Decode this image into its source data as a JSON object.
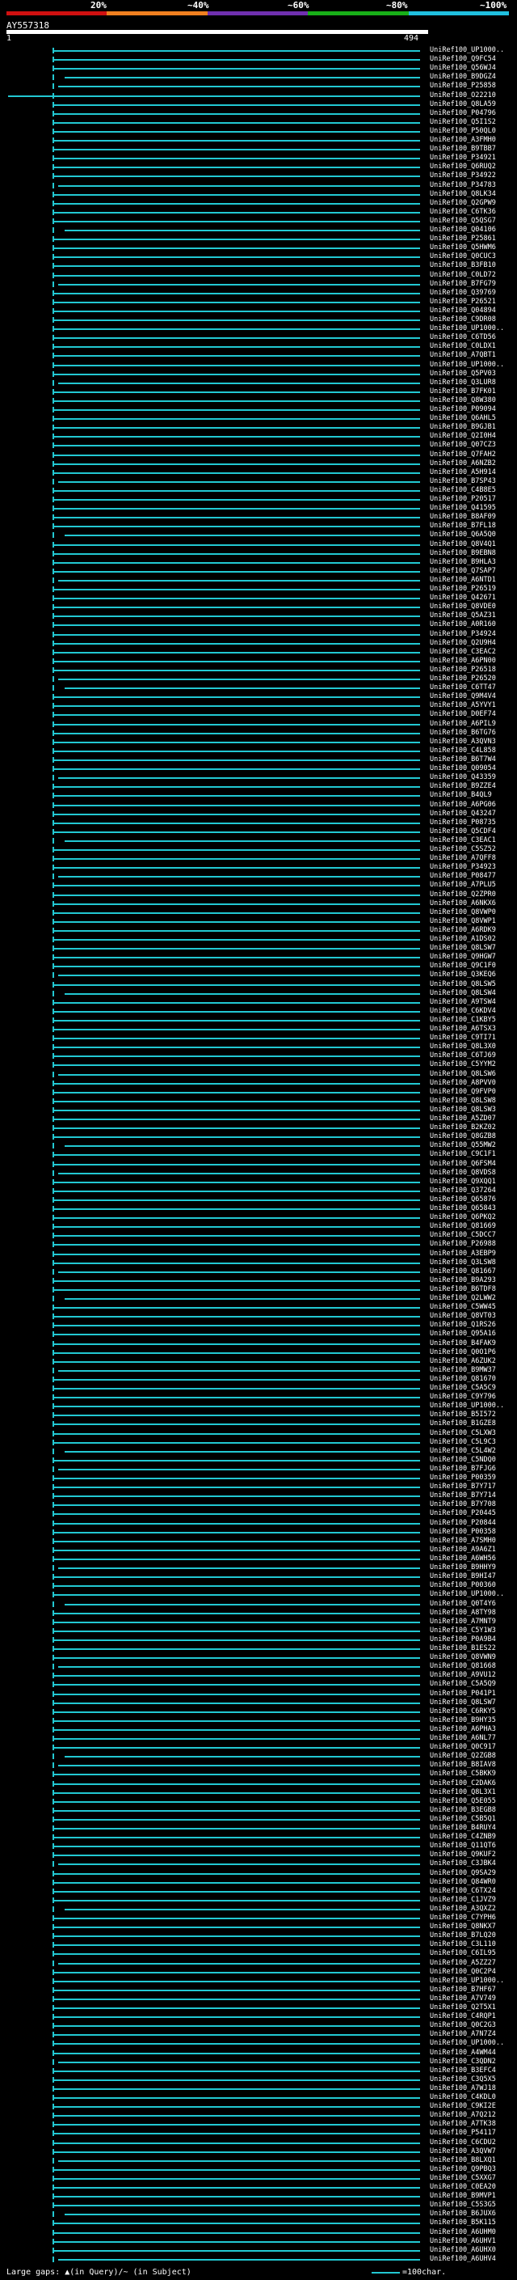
{
  "header": {
    "color_stops": [
      "#d01010",
      "#f08020",
      "#7030b0",
      "#18b018",
      "#20c0e0"
    ],
    "percent_labels": [
      "20%",
      "~40%",
      "~60%",
      "~80%",
      "~100%"
    ],
    "query_title": "AY557318",
    "axis_start": "1",
    "axis_end": "494"
  },
  "hit_color": "#22c8d2",
  "footer": {
    "legend_text": "Large gaps: ▲(in Query)/~ (in Subject)",
    "legend_unit": "=100char."
  },
  "hits": [
    "UniRef100_UP1000..",
    "UniRef100_Q9FC54",
    "UniRef100_Q56WJ4",
    "UniRef100_B9DGZ4",
    "UniRef100_P25858",
    "UniRef100_O22210",
    "UniRef100_Q8LA59",
    "UniRef100_P04796",
    "UniRef100_Q5I1S2",
    "UniRef100_P50QL0",
    "UniRef100_A3FMH0",
    "UniRef100_B9TBB7",
    "UniRef100_P34921",
    "UniRef100_Q6RUQ2",
    "UniRef100_P34922",
    "UniRef100_P34783",
    "UniRef100_Q8LK34",
    "UniRef100_Q2GPW9",
    "UniRef100_C6TK36",
    "UniRef100_Q5QSG7",
    "UniRef100_Q04106",
    "UniRef100_P25861",
    "UniRef100_Q5HWM6",
    "UniRef100_Q0CUC3",
    "UniRef100_B3FB10",
    "UniRef100_C0LD72",
    "UniRef100_B7FG79",
    "UniRef100_Q39769",
    "UniRef100_P26521",
    "UniRef100_Q04894",
    "UniRef100_C9DR08",
    "UniRef100_UP1000..",
    "UniRef100_C6TD56",
    "UniRef100_C0LDX1",
    "UniRef100_A7QBT1",
    "UniRef100_UP1000..",
    "UniRef100_Q5PV03",
    "UniRef100_Q3LUR8",
    "UniRef100_B7FK01",
    "UniRef100_Q8W380",
    "UniRef100_P09094",
    "UniRef100_Q6AHL5",
    "UniRef100_B9GJB1",
    "UniRef100_Q2I0H4",
    "UniRef100_Q07CZ3",
    "UniRef100_Q7FAH2",
    "UniRef100_A6NZB2",
    "UniRef100_A5H914",
    "UniRef100_B7SP43",
    "UniRef100_C4B8E5",
    "UniRef100_P20517",
    "UniRef100_Q41595",
    "UniRef100_B8AF09",
    "UniRef100_B7FL18",
    "UniRef100_Q6A5Q0",
    "UniRef100_Q8V4Q1",
    "UniRef100_B9EBN8",
    "UniRef100_B9HLA3",
    "UniRef100_Q7SAP7",
    "UniRef100_A6NTD1",
    "UniRef100_P26519",
    "UniRef100_Q42671",
    "UniRef100_Q8VDE0",
    "UniRef100_Q5AZ31",
    "UniRef100_A0R160",
    "UniRef100_P34924",
    "UniRef100_Q2U9H4",
    "UniRef100_C3EAC2",
    "UniRef100_A6PN00",
    "UniRef100_P26518",
    "UniRef100_P26520",
    "UniRef100_C6TT47",
    "UniRef100_Q9M4V4",
    "UniRef100_A5YVY1",
    "UniRef100_D0EF74",
    "UniRef100_A6PIL9",
    "UniRef100_B6TG76",
    "UniRef100_A3QVN3",
    "UniRef100_C4L858",
    "UniRef100_B6T7W4",
    "UniRef100_Q09054",
    "UniRef100_Q43359",
    "UniRef100_B9ZZE4",
    "UniRef100_B4QL9",
    "UniRef100_A6PG06",
    "UniRef100_Q43247",
    "UniRef100_P08735",
    "UniRef100_Q5CDF4",
    "UniRef100_C3EAC1",
    "UniRef100_C5SZ52",
    "UniRef100_A7QFF8",
    "UniRef100_P34923",
    "UniRef100_P08477",
    "UniRef100_A7PLU5",
    "UniRef100_Q2ZPR0",
    "UniRef100_A6NKX6",
    "UniRef100_Q8VWP0",
    "UniRef100_Q8VWP1",
    "UniRef100_A6RDK9",
    "UniRef100_A1DS02",
    "UniRef100_Q8LSW7",
    "UniRef100_Q9HGW7",
    "UniRef100_Q9C1F0",
    "UniRef100_Q3KEQ6",
    "UniRef100_Q8LSW5",
    "UniRef100_Q8LSW4",
    "UniRef100_A9TSW4",
    "UniRef100_C6KDV4",
    "UniRef100_C1KBY5",
    "UniRef100_A6TSX3",
    "UniRef100_C9TI71",
    "UniRef100_Q8L3X0",
    "UniRef100_C6TJ69",
    "UniRef100_C5YYM2",
    "UniRef100_Q8LSW6",
    "UniRef100_A8PVV0",
    "UniRef100_Q9FVP0",
    "UniRef100_Q8LSW8",
    "UniRef100_Q8LSW3",
    "UniRef100_A5ZD07",
    "UniRef100_B2KZ02",
    "UniRef100_Q8GZB8",
    "UniRef100_Q55MW2",
    "UniRef100_C9C1F1",
    "UniRef100_Q6FSM4",
    "UniRef100_Q8VDS8",
    "UniRef100_Q9XQQ1",
    "UniRef100_Q37264",
    "UniRef100_Q65876",
    "UniRef100_Q65843",
    "UniRef100_Q6PKQ2",
    "UniRef100_Q81669",
    "UniRef100_C5DCC7",
    "UniRef100_P26988",
    "UniRef100_A3EBP9",
    "UniRef100_Q3LSW8",
    "UniRef100_Q81667",
    "UniRef100_B9A293",
    "UniRef100_B6TDF8",
    "UniRef100_Q2LWW2",
    "UniRef100_C5WW45",
    "UniRef100_Q8VT03",
    "UniRef100_Q1RS26",
    "UniRef100_Q95A16",
    "UniRef100_B4FAK9",
    "UniRef100_Q0O1P6",
    "UniRef100_A6ZUK2",
    "UniRef100_B9MW37",
    "UniRef100_Q81670",
    "UniRef100_C5A5C9",
    "UniRef100_C9Y796",
    "UniRef100_UP1000..",
    "UniRef100_B5I572",
    "UniRef100_B1GZE8",
    "UniRef100_C5LXW3",
    "UniRef100_C5L9C3",
    "UniRef100_C5L4W2",
    "UniRef100_C5NDQ0",
    "UniRef100_B7FJG6",
    "UniRef100_P00359",
    "UniRef100_B7Y717",
    "UniRef100_B7Y714",
    "UniRef100_B7Y708",
    "UniRef100_P20445",
    "UniRef100_P20844",
    "UniRef100_P00358",
    "UniRef100_A7SMH0",
    "UniRef100_A9A6Z1",
    "UniRef100_A6WH56",
    "UniRef100_B9HHY9",
    "UniRef100_B9HI47",
    "UniRef100_P00360",
    "UniRef100_UP1000..",
    "UniRef100_Q0T4Y6",
    "UniRef100_A8TY98",
    "UniRef100_A7MNT9",
    "UniRef100_C5Y1W3",
    "UniRef100_P0A9B4",
    "UniRef100_B1ES22",
    "UniRef100_Q8VWN9",
    "UniRef100_Q81668",
    "UniRef100_A9VU12",
    "UniRef100_C5A5Q9",
    "UniRef100_P041P1",
    "UniRef100_Q8LSW7",
    "UniRef100_C6RKY5",
    "UniRef100_B9HY35",
    "UniRef100_A6PHA3",
    "UniRef100_A6NL77",
    "UniRef100_Q0C917",
    "UniRef100_Q2ZGB8",
    "UniRef100_B8IAV8",
    "UniRef100_C5BKK9",
    "UniRef100_C2DAK6",
    "UniRef100_Q8L3X1",
    "UniRef100_Q5E055",
    "UniRef100_B3EGB8",
    "UniRef100_C5B5Q1",
    "UniRef100_B4RUY4",
    "UniRef100_C4ZNB9",
    "UniRef100_Q11QT6",
    "UniRef100_Q9KUF2",
    "UniRef100_C3JBK4",
    "UniRef100_Q9SA29",
    "UniRef100_Q84WR0",
    "UniRef100_C6TX24",
    "UniRef100_C1JVZ9",
    "UniRef100_A3QXZ2",
    "UniRef100_C7YPH6",
    "UniRef100_Q8NKX7",
    "UniRef100_B7LQ20",
    "UniRef100_C3L110",
    "UniRef100_C6IL95",
    "UniRef100_A5ZZ27",
    "UniRef100_Q0C2P4",
    "UniRef100_UP1000..",
    "UniRef100_B7HF67",
    "UniRef100_A7V749",
    "UniRef100_Q2T5X1",
    "UniRef100_C4RQP1",
    "UniRef100_Q0C2G3",
    "UniRef100_A7N7Z4",
    "UniRef100_UP1000..",
    "UniRef100_A4WM44",
    "UniRef100_C3QDN2",
    "UniRef100_B3EFC4",
    "UniRef100_C3Q5X5",
    "UniRef100_A7WJ18",
    "UniRef100_C4KDL0",
    "UniRef100_C9KI2E",
    "UniRef100_A7Q212",
    "UniRef100_A7TK38",
    "UniRef100_P54117",
    "UniRef100_C6CDU2",
    "UniRef100_A3QVW7",
    "UniRef100_B8LXQ1",
    "UniRef100_Q9PBQ3",
    "UniRef100_C5XXG7",
    "UniRef100_C0EA20",
    "UniRef100_B9MVP1",
    "UniRef100_C5S3G5",
    "UniRef100_B6JUX6",
    "UniRef100_B5K115",
    "UniRef100_A6UHM0",
    "UniRef100_A6UHV1",
    "UniRef100_A6UHX0",
    "UniRef100_A6UHV4"
  ]
}
